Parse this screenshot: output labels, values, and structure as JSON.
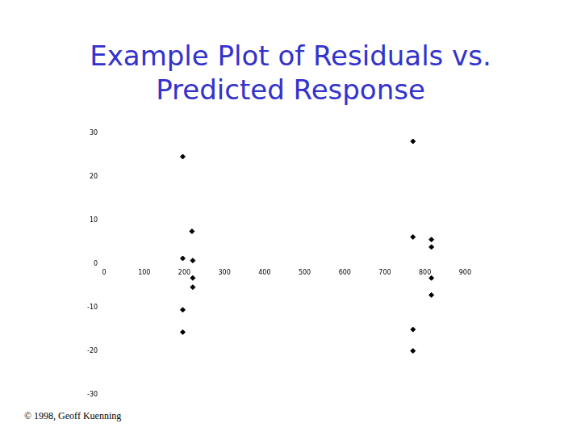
{
  "chart_data": {
    "type": "scatter",
    "title": "Example Plot of Residuals vs. Predicted Response",
    "annotations": [
      "© 1998, Geoff Kuenning"
    ],
    "x": [
      196,
      219,
      196,
      221,
      221,
      221,
      196,
      196,
      770,
      770,
      816,
      816,
      816,
      816,
      770,
      770
    ],
    "values": [
      24.6,
      7.5,
      1.3,
      0.8,
      -3.2,
      -5.3,
      -10.5,
      -15.6,
      28.1,
      6.2,
      5.6,
      3.9,
      -3.2,
      -7.1,
      -15,
      -19.9
    ],
    "color": "#000000",
    "marker": "diamond",
    "xlim": [
      0,
      900
    ],
    "xticks": [
      0,
      100,
      200,
      300,
      400,
      500,
      600,
      700,
      800,
      900
    ],
    "ylim": [
      -30,
      30
    ],
    "yticks": [
      -30,
      -20,
      -10,
      0,
      10,
      20,
      30
    ],
    "grid": false
  }
}
